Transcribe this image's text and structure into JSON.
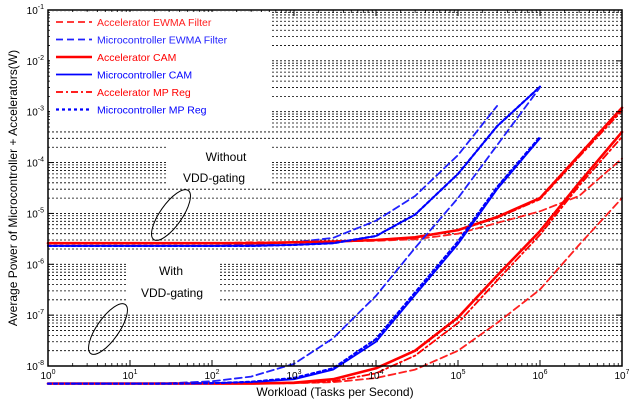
{
  "chart_data": {
    "type": "line",
    "xlabel": "Workload (Tasks per Second)",
    "ylabel": "Average Power of Microcontroller + Accelerators(W)",
    "x_scale": "log",
    "y_scale": "log",
    "xlim": [
      1,
      10000000
    ],
    "ylim": [
      1e-08,
      0.1
    ],
    "x_tick_labels": [
      "10^0",
      "10^1",
      "10^2",
      "10^3",
      "10^4",
      "10^5",
      "10^6",
      "10^7"
    ],
    "y_tick_labels": [
      "10^-8",
      "10^-7",
      "10^-6",
      "10^-5",
      "10^-4",
      "10^-3",
      "10^-2",
      "10^-1"
    ],
    "grid": "horizontal dashed lines at y minor ticks",
    "legend_position": "top-left",
    "x_positions": [
      1,
      3,
      10,
      30,
      100,
      300,
      1000,
      3000,
      10000,
      30000,
      100000,
      300000,
      1000000,
      3000000,
      10000000
    ],
    "series": [
      {
        "name": "Accelerator EWMA Filter",
        "color": "#ff2020",
        "style": "dashed",
        "group": "accelerator",
        "y": [
          2.6e-06,
          2.6e-06,
          2.6e-06,
          2.6e-06,
          2.6e-06,
          2.7e-06,
          2.7e-06,
          2.8e-06,
          2.9e-06,
          3.1e-06,
          4e-06,
          6.5e-06,
          1.1e-05,
          2.2e-05,
          0.00012
        ]
      },
      {
        "name": "Microcontroller EWMA Filter",
        "color": "#2020ff",
        "style": "dashed",
        "group": "microcontroller",
        "y": [
          2.3e-06,
          2.3e-06,
          2.3e-06,
          2.3e-06,
          2.3e-06,
          2.4e-06,
          2.7e-06,
          3.3e-06,
          7.2e-06,
          2.2e-05,
          0.00014,
          0.0013,
          null,
          null,
          null
        ]
      },
      {
        "name": "Accelerator CAM",
        "color": "#ff0000",
        "style": "solid-thick",
        "group": "accelerator",
        "y": [
          2.6e-06,
          2.6e-06,
          2.6e-06,
          2.6e-06,
          2.6e-06,
          2.6e-06,
          2.7e-06,
          2.8e-06,
          3e-06,
          3.4e-06,
          4.7e-06,
          8.5e-06,
          2e-05,
          0.00014,
          0.0012
        ]
      },
      {
        "name": "Microcontroller CAM",
        "color": "#0000ff",
        "style": "solid",
        "group": "microcontroller",
        "y": [
          2.3e-06,
          2.3e-06,
          2.3e-06,
          2.3e-06,
          2.3e-06,
          2.3e-06,
          2.4e-06,
          2.6e-06,
          3.6e-06,
          9.5e-06,
          6e-05,
          0.00052,
          0.0031,
          null,
          null
        ]
      },
      {
        "name": "Accelerator MP Reg",
        "color": "#ff0000",
        "style": "dash-dot",
        "group": "accelerator",
        "y": [
          2.6e-06,
          2.6e-06,
          2.6e-06,
          2.6e-06,
          2.6e-06,
          2.6e-06,
          2.7e-06,
          2.8e-06,
          3e-06,
          3.4e-06,
          4.7e-06,
          8.2e-06,
          1.9e-05,
          0.00013,
          0.00105
        ]
      },
      {
        "name": "Microcontroller MP Reg",
        "color": "#0000ff",
        "style": "dotted",
        "group": "microcontroller",
        "y": [
          2.3e-06,
          2.3e-06,
          2.3e-06,
          2.3e-06,
          2.3e-06,
          2.3e-06,
          2.4e-06,
          2.6e-06,
          3.6e-06,
          9.5e-06,
          6e-05,
          0.00052,
          0.0031,
          null,
          null
        ]
      }
    ],
    "series_lower": [
      {
        "name": "Accelerator EWMA Filter",
        "y": [
          4.5e-09,
          4.5e-09,
          4.5e-09,
          4.5e-09,
          4.5e-09,
          4.5e-09,
          4.6e-09,
          4.8e-09,
          5.8e-09,
          8.5e-09,
          2e-08,
          7e-08,
          3.2e-07,
          2.4e-06,
          2e-05
        ]
      },
      {
        "name": "Microcontroller EWMA Filter",
        "y": [
          4.5e-09,
          4.5e-09,
          4.5e-09,
          4.6e-09,
          5e-09,
          6.2e-09,
          1.1e-08,
          3.5e-08,
          2.4e-07,
          2.1e-06,
          2e-05,
          0.00022,
          0.003,
          null,
          null
        ]
      },
      {
        "name": "Accelerator CAM",
        "y": [
          4.5e-09,
          4.5e-09,
          4.5e-09,
          4.5e-09,
          4.5e-09,
          4.5e-09,
          4.7e-09,
          5.5e-09,
          9e-09,
          2e-08,
          9e-08,
          6e-07,
          4.5e-06,
          4e-05,
          0.0004
        ]
      },
      {
        "name": "Microcontroller CAM",
        "y": [
          4.5e-09,
          4.5e-09,
          4.5e-09,
          4.5e-09,
          4.6e-09,
          4.8e-09,
          5.5e-09,
          8.5e-09,
          3e-08,
          2.5e-07,
          2.5e-06,
          3e-05,
          0.0003,
          null,
          null
        ]
      },
      {
        "name": "Accelerator MP Reg",
        "y": [
          4.5e-09,
          4.5e-09,
          4.5e-09,
          4.5e-09,
          4.5e-09,
          4.5e-09,
          4.6e-09,
          5e-09,
          7.2e-09,
          1.6e-08,
          7e-08,
          4.8e-07,
          3.8e-06,
          3.5e-05,
          0.00032
        ]
      },
      {
        "name": "Microcontroller MP Reg",
        "y": [
          4.5e-09,
          4.5e-09,
          4.5e-09,
          4.5e-09,
          4.6e-09,
          4.9e-09,
          5.8e-09,
          9e-09,
          3.4e-08,
          2.8e-07,
          2.8e-06,
          3.3e-05,
          0.00032,
          null,
          null
        ]
      }
    ],
    "annotations": [
      {
        "text_lines": [
          "Without",
          "VDD-gating"
        ]
      },
      {
        "text_lines": [
          "With",
          "VDD-gating"
        ]
      }
    ]
  }
}
